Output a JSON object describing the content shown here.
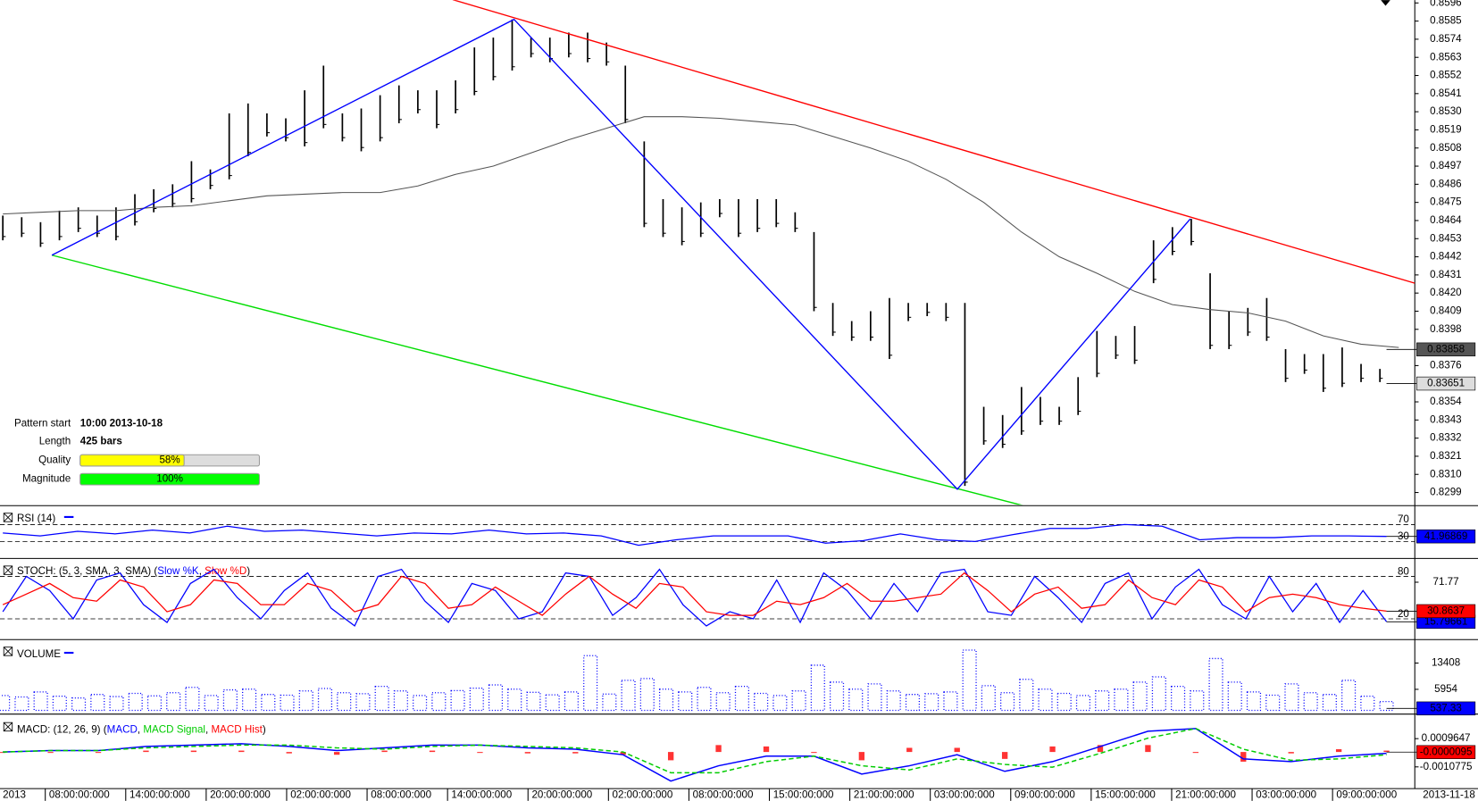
{
  "chart_data": [
    {
      "type": "ohlc",
      "color": "#000000",
      "xlim": [
        -0.15,
        74.85
      ],
      "ylim": [
        0.82916,
        0.85977
      ],
      "yticks": [
        0.8596,
        0.8585,
        0.8574,
        0.8563,
        0.8552,
        0.8541,
        {
          "value": 0.853,
          "label": "0.8530"
        },
        0.8519,
        0.8508,
        0.8497,
        0.8486,
        0.8475,
        0.8464,
        0.8453,
        0.8442,
        0.8431,
        {
          "value": 0.842,
          "label": "0.8420"
        },
        0.8409,
        0.8398,
        0.8376,
        0.8354,
        0.8343,
        0.8332,
        0.8321,
        {
          "value": 0.831,
          "label": "0.8310"
        },
        0.8299
      ],
      "high": [
        0.8467,
        0.8466,
        0.8463,
        0.847,
        0.8472,
        0.8467,
        0.8472,
        0.848,
        0.8483,
        0.8486,
        0.85,
        0.8495,
        0.8529,
        0.8535,
        0.8529,
        0.8526,
        0.8543,
        0.8558,
        0.8529,
        0.8532,
        0.854,
        0.8546,
        0.8543,
        0.8543,
        0.8549,
        0.8569,
        0.8575,
        0.8586,
        0.8575,
        0.8575,
        0.8578,
        0.8578,
        0.8572,
        0.8558,
        0.8512,
        0.8477,
        0.8472,
        0.8475,
        0.8477,
        0.8477,
        0.8477,
        0.8477,
        0.8469,
        0.8457,
        0.8414,
        0.8403,
        0.8409,
        0.8417,
        0.8414,
        0.8414,
        0.8414,
        0.8414,
        0.8351,
        0.8346,
        0.8363,
        0.8357,
        0.8351,
        0.8369,
        0.8397,
        0.8394,
        0.84,
        0.8452,
        0.846,
        0.8465,
        0.8432,
        0.8409,
        0.8411,
        0.8417,
        0.8386,
        0.8383,
        0.8383,
        0.8387,
        0.8377,
        0.8374
      ],
      "low": [
        0.8452,
        0.8454,
        0.8448,
        0.8452,
        0.8457,
        0.8454,
        0.8452,
        0.8461,
        0.8469,
        0.8472,
        0.8475,
        0.8483,
        0.8489,
        0.8503,
        0.8515,
        0.8512,
        0.8509,
        0.852,
        0.8512,
        0.8506,
        0.8512,
        0.8523,
        0.8529,
        0.852,
        0.8529,
        0.854,
        0.8549,
        0.8555,
        0.8563,
        0.856,
        0.8563,
        0.856,
        0.8558,
        0.8523,
        0.846,
        0.8454,
        0.8449,
        0.8454,
        0.8466,
        0.8454,
        0.8457,
        0.846,
        0.8457,
        0.8409,
        0.8394,
        0.8391,
        0.8391,
        0.838,
        0.8403,
        0.8406,
        0.8403,
        0.8303,
        0.8328,
        0.8326,
        0.8334,
        0.834,
        0.834,
        0.8346,
        0.8369,
        0.838,
        0.8377,
        0.8426,
        0.8443,
        0.8449,
        0.8386,
        0.8386,
        0.8394,
        0.8391,
        0.8366,
        0.8371,
        0.836,
        0.8363,
        0.8366,
        0.8366
      ],
      "last": 0.83651,
      "ma": {
        "color": "#555555",
        "last": 0.83858,
        "x": [
          0,
          2,
          4,
          6,
          8,
          10,
          12,
          14,
          16,
          18,
          20,
          22,
          24,
          26,
          28,
          30,
          32,
          34,
          36,
          38,
          40,
          42,
          44,
          46,
          48,
          50,
          52,
          54,
          56,
          58,
          60,
          62,
          64,
          66,
          68,
          70,
          72,
          74
        ],
        "values": [
          0.8468,
          0.8469,
          0.847,
          0.847,
          0.8472,
          0.8473,
          0.8476,
          0.8479,
          0.848,
          0.8481,
          0.8481,
          0.8485,
          0.8492,
          0.8497,
          0.8505,
          0.8513,
          0.852,
          0.8527,
          0.8527,
          0.8526,
          0.8524,
          0.8522,
          0.8515,
          0.8508,
          0.85,
          0.8489,
          0.8475,
          0.8457,
          0.8442,
          0.8432,
          0.8421,
          0.8413,
          0.841,
          0.8408,
          0.8403,
          0.8394,
          0.8389,
          0.8387
        ]
      },
      "trend_lines": [
        {
          "color": "#ff0000",
          "x": [
            23.85,
            74.85
          ],
          "values": [
            0.8598,
            0.8426
          ]
        },
        {
          "color": "#00dd00",
          "x": [
            2.6,
            54.1
          ],
          "values": [
            0.8443,
            0.8291
          ]
        },
        {
          "color": "#0000ff",
          "x": [
            2.6,
            27.1,
            50.6,
            62.95
          ],
          "values": [
            0.8443,
            0.8586,
            0.8301,
            0.8465
          ]
        }
      ]
    },
    {
      "type": "line",
      "title": "RSI (14)",
      "ylim": [
        -5.6,
        105.6
      ],
      "levels": [
        30,
        70
      ],
      "series": [
        {
          "color": "#0000ff",
          "last": 41.96869,
          "values": [
            50,
            43,
            54,
            48,
            57,
            50,
            66,
            54,
            57,
            50,
            43,
            50,
            48,
            57,
            48,
            50,
            43,
            21,
            34,
            43,
            43,
            43,
            26,
            32,
            48,
            34,
            30,
            46,
            61,
            61,
            70,
            66,
            34,
            39,
            39,
            43,
            43,
            42
          ]
        }
      ]
    },
    {
      "type": "line",
      "title": "STOCH: (5, 3, SMA, 3, SMA)",
      "legend_punct": [
        "(",
        ", ",
        ")"
      ],
      "ylim": [
        -8,
        100
      ],
      "levels": [
        20,
        80
      ],
      "yticks": [
        71.77
      ],
      "series": [
        {
          "name": "Slow %K",
          "color": "#0000ff",
          "last": 15.79661,
          "values": [
            30,
            80,
            60,
            20,
            75,
            85,
            40,
            15,
            70,
            90,
            50,
            20,
            60,
            85,
            35,
            10,
            80,
            90,
            45,
            15,
            70,
            60,
            20,
            30,
            85,
            80,
            25,
            50,
            90,
            40,
            10,
            30,
            20,
            75,
            15,
            85,
            60,
            20,
            70,
            30,
            85,
            90,
            30,
            25,
            80,
            50,
            15,
            70,
            85,
            20,
            65,
            90,
            40,
            20,
            80,
            30,
            70,
            15,
            60,
            16
          ]
        },
        {
          "name": "Slow %D",
          "color": "#ff0000",
          "last": 30.8637,
          "values": [
            40,
            55,
            70,
            50,
            45,
            75,
            65,
            30,
            40,
            75,
            70,
            40,
            40,
            70,
            60,
            30,
            40,
            80,
            70,
            35,
            40,
            65,
            45,
            25,
            55,
            80,
            55,
            35,
            70,
            65,
            30,
            25,
            25,
            45,
            40,
            50,
            70,
            45,
            45,
            50,
            55,
            85,
            60,
            30,
            55,
            65,
            35,
            40,
            75,
            50,
            40,
            75,
            65,
            30,
            50,
            55,
            50,
            40,
            35,
            31
          ]
        }
      ]
    },
    {
      "type": "bar",
      "title": "VOLUME",
      "ylim": [
        0,
        19000
      ],
      "yticks": [
        5954,
        13408
      ],
      "series": [
        {
          "color": "#0000ff",
          "last": 537.33,
          "values": [
            4200,
            3800,
            5200,
            4000,
            3500,
            4500,
            3900,
            4800,
            4100,
            5000,
            6500,
            4200,
            5800,
            6000,
            4500,
            4300,
            5500,
            6200,
            5000,
            4700,
            6800,
            5500,
            4200,
            5000,
            5600,
            6300,
            7200,
            6000,
            5100,
            4400,
            5200,
            15500,
            4600,
            8500,
            9000,
            6000,
            5200,
            6500,
            5000,
            6800,
            4800,
            4200,
            5500,
            12800,
            8000,
            6000,
            7500,
            5500,
            4500,
            4700,
            5200,
            17100,
            7000,
            5000,
            8800,
            6000,
            4800,
            4200,
            5500,
            6000,
            8000,
            9500,
            6800,
            5500,
            14700,
            8000,
            5200,
            4300,
            7500,
            5000,
            4500,
            8500,
            4000,
            2500
          ]
        }
      ]
    },
    {
      "type": "macd",
      "title": "MACD: (12, 26, 9)",
      "legend_punct": [
        "(",
        ", ",
        ", ",
        ")"
      ],
      "ylim": [
        -0.00258,
        0.0024
      ],
      "yticks": [
        -0.0010775,
        0.0009647
      ],
      "last": -9.5e-06,
      "series": [
        {
          "name": "MACD",
          "color": "#0000ff",
          "values": [
            0,
            0.0001,
            0.0001,
            0.0004,
            0.0005,
            0.0006,
            0.0004,
            0.0001,
            0.0003,
            0.0005,
            0.0005,
            0.0003,
            0.0002,
            -0.0002,
            -0.0021,
            -0.001,
            -0.0003,
            -0.0003,
            -0.0016,
            -0.001,
            -0.0002,
            -0.0014,
            -0.0007,
            0.0004,
            0.0015,
            0.0017,
            -0.0005,
            -0.0007,
            -0.0003,
            -0.0001
          ]
        },
        {
          "name": "MACD Signal",
          "color": "#00cc00",
          "values": [
            0,
            0.0001,
            0.0001,
            0.0003,
            0.0004,
            0.0005,
            0.0005,
            0.0003,
            0.0002,
            0.0004,
            0.0005,
            0.0004,
            0.0003,
            0,
            -0.0015,
            -0.0015,
            -0.0007,
            -0.0003,
            -0.001,
            -0.0013,
            -0.0005,
            -0.0009,
            -0.0011,
            -0.0001,
            0.001,
            0.0017,
            0.0002,
            -0.0006,
            -0.0005,
            -0.0002
          ]
        },
        {
          "name": "MACD Hist",
          "color": "#ff0000",
          "values": [
            0,
            0,
            0,
            0.0001,
            0.0001,
            0.0001,
            -0.0001,
            -0.0002,
            0.0001,
            0.0001,
            0,
            -0.0001,
            -0.0001,
            -0.0002,
            -0.0006,
            0.0005,
            0.0004,
            0,
            -0.0006,
            0.0003,
            0.0003,
            -0.0005,
            0.0004,
            0.0005,
            0.0005,
            0,
            -0.0007,
            -0.0001,
            0.0002,
            0.0001
          ]
        }
      ]
    }
  ],
  "pattern_info": [
    {
      "label": "Pattern start",
      "text": "10:00 2013-10-18"
    },
    {
      "label": "Length",
      "text": "425 bars"
    },
    {
      "label": "Quality",
      "value": 58,
      "value_label": "58%",
      "color": "#ffff00"
    },
    {
      "label": "Magnitude",
      "value": 100,
      "value_label": "100%",
      "color": "#00ff00"
    }
  ],
  "time_axis": {
    "start": "2013",
    "end": "2013-11-18",
    "labels": [
      "08:00:00:000",
      "14:00:00:000",
      "20:00:00:000",
      "02:00:00:000",
      "08:00:00:000",
      "14:00:00:000",
      "20:00:00:000",
      "02:00:00:000",
      "08:00:00:000",
      "15:00:00:000",
      "21:00:00:000",
      "03:00:00:000",
      "09:00:00:000",
      "15:00:00:000",
      "21:00:00:000",
      "03:00:00:000",
      "09:00:00:000"
    ]
  }
}
